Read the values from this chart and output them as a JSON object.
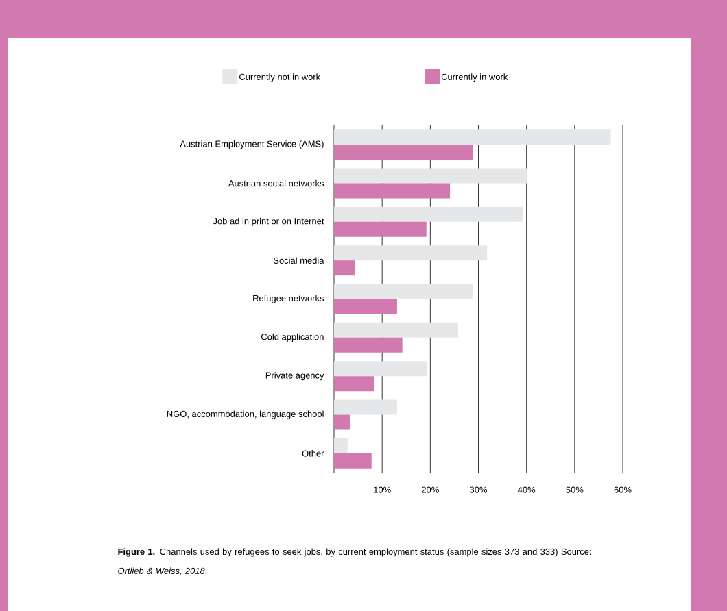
{
  "chart_data": {
    "type": "bar",
    "orientation": "horizontal",
    "categories": [
      "Austrian Employment Service (AMS)",
      "Austrian social networks",
      "Job ad in print or on Internet",
      "Social media",
      "Refugee networks",
      "Cold application",
      "Private agency",
      "NGO, accommodation, language school",
      "Other"
    ],
    "series": [
      {
        "name": "Currently not in work",
        "color": "#e6e7e8",
        "values": [
          57.5,
          40.2,
          39.2,
          31.8,
          28.9,
          25.8,
          19.4,
          13.1,
          2.8
        ]
      },
      {
        "name": "Currently in work",
        "color": "#d279b0",
        "values": [
          28.8,
          24.1,
          19.2,
          4.3,
          13.1,
          14.2,
          8.3,
          3.3,
          7.8
        ]
      }
    ],
    "xlim": [
      0,
      60
    ],
    "xticks": [
      {
        "value": 0,
        "label": null
      },
      {
        "value": 10,
        "label": "10%"
      },
      {
        "value": 20,
        "label": "20%"
      },
      {
        "value": 30,
        "label": "30%"
      },
      {
        "value": 40,
        "label": "40%"
      },
      {
        "value": 50,
        "label": "50%"
      },
      {
        "value": 60,
        "label": "60%"
      }
    ],
    "grid": "x",
    "legend": "top",
    "annotations": [
      "**Figure 1.** Channels used by refugees to seek jobs, by current employment status (sample sizes 373 and 333) Source: *Ortlieb & Weiss, 2018*."
    ]
  }
}
